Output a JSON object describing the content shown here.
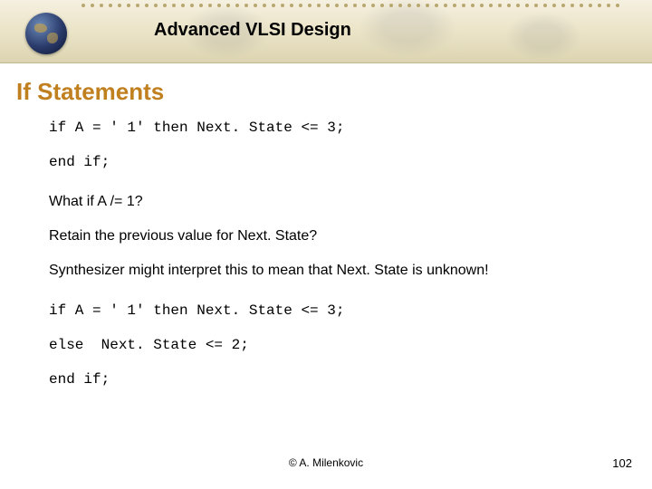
{
  "header": {
    "title": "Advanced VLSI Design"
  },
  "section": {
    "title": "If Statements"
  },
  "code1": {
    "line1": "if A = ' 1' then Next. State <= 3;",
    "line2": "end if;"
  },
  "body": {
    "q1": "What if A /= 1?",
    "q2": "Retain the previous value for Next. State?",
    "q3": "Synthesizer might interpret this to mean that Next. State is unknown!"
  },
  "code2": {
    "line1": "if A = ' 1' then Next. State <= 3;",
    "line2": "else  Next. State <= 2;",
    "line3": "end if;"
  },
  "footer": {
    "copyright": "© A. Milenkovic",
    "page": "102"
  },
  "colors": {
    "section_title": "#c08020",
    "header_bg_top": "#f5f0e0",
    "header_bg_bottom": "#dcd4b0"
  }
}
